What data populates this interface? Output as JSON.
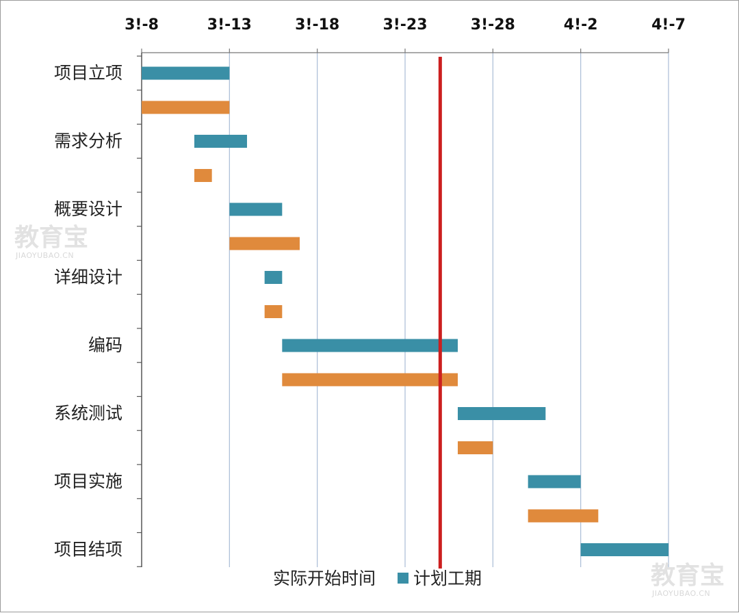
{
  "chart_data": {
    "type": "bar",
    "orientation": "horizontal",
    "subtype": "gantt",
    "x_tick_labels": [
      "3!-8",
      "3!-13",
      "3!-18",
      "3!-23",
      "3!-28",
      "4!-2",
      "4!-7"
    ],
    "x_tick_days": [
      0,
      5,
      10,
      15,
      20,
      25,
      30
    ],
    "xlim_days": [
      0,
      30
    ],
    "categories": [
      "项目立项",
      "需求分析",
      "概要设计",
      "详细设计",
      "编码",
      "系统测试",
      "项目实施",
      "项目结项"
    ],
    "series": [
      {
        "name": "计划工期",
        "color": "#3a8fa6",
        "start": [
          0,
          3,
          5,
          7,
          8,
          18,
          22,
          25
        ],
        "end": [
          5,
          6,
          8,
          8,
          18,
          23,
          25,
          30
        ]
      },
      {
        "name": "实际开始时间",
        "color": "#e08a3c",
        "start": [
          0,
          3,
          5,
          7,
          8,
          18,
          22
        ],
        "end": [
          5,
          4,
          9,
          8,
          18,
          20,
          26
        ]
      }
    ],
    "status_line": {
      "day": 17,
      "color": "#cc1f1f"
    },
    "grid": true,
    "legend": {
      "position": "bottom-center",
      "entries": [
        "实际开始时间",
        "计划工期"
      ]
    }
  },
  "watermarks": [
    {
      "cn": "教育宝",
      "en": "JIAOYUBAO.CN"
    },
    {
      "cn": "教育宝",
      "en": "JIAOYUBAO.CN"
    }
  ]
}
